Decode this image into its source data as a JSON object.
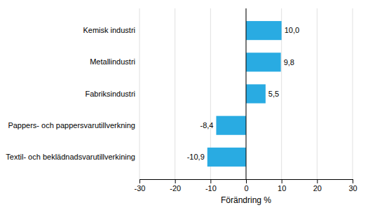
{
  "chart_data": {
    "type": "bar",
    "orientation": "horizontal",
    "categories": [
      "Kemisk industri",
      "Metallindustri",
      "Fabriksindustri",
      "Pappers- och pappersvarutillverkning",
      "Textil- och beklädnadsvarutillverkining"
    ],
    "values": [
      10.0,
      9.8,
      5.5,
      -8.4,
      -10.9
    ],
    "value_labels": [
      "10,0",
      "9,8",
      "5,5",
      "-8,4",
      "-10,9"
    ],
    "data_labels": true,
    "color": "#29ABE2",
    "xlabel": "Förändring %",
    "xlim": [
      -30,
      30
    ],
    "xticks": [
      -30,
      -20,
      -10,
      0,
      10,
      20,
      30
    ],
    "grid": true
  }
}
